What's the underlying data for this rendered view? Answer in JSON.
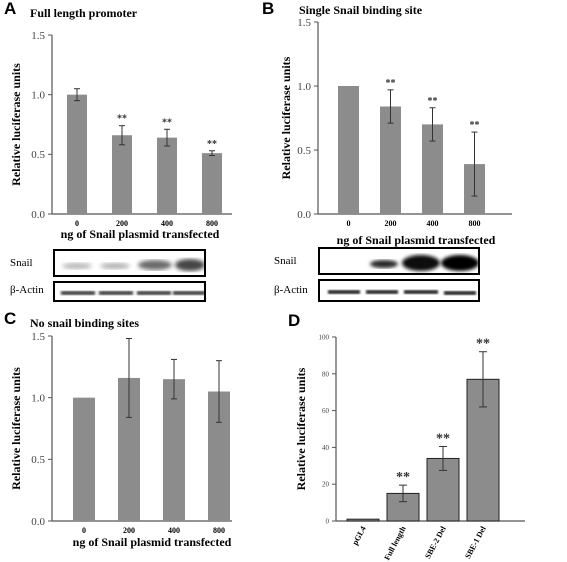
{
  "panels": {
    "A": {
      "letter": "A",
      "title": "Full length promoter"
    },
    "B": {
      "letter": "B",
      "title": "Single Snail binding site"
    },
    "C": {
      "letter": "C",
      "title": "No snail binding sites"
    },
    "D": {
      "letter": "D"
    }
  },
  "blots": {
    "A": {
      "snail_label": "Snail",
      "actin_label": "β-Actin"
    },
    "B": {
      "snail_label": "Snail",
      "actin_label": "β-Actin"
    }
  },
  "colors": {
    "bar": "#8c8c8c",
    "axis": "#555555",
    "text": "#000000"
  },
  "chart_data": [
    {
      "id": "A",
      "type": "bar",
      "categories": [
        "0",
        "200",
        "400",
        "800"
      ],
      "values": [
        1.0,
        0.66,
        0.64,
        0.51
      ],
      "errors": [
        0.05,
        0.08,
        0.07,
        0.02
      ],
      "annotations": [
        "",
        "**",
        "**",
        "**"
      ],
      "xlabel": "ng of Snail plasmid transfected",
      "ylabel": "Relative luciferase units",
      "ylim": [
        0,
        1.5
      ],
      "yticks": [
        "0.0",
        "0.5",
        "1.0",
        "1.5"
      ]
    },
    {
      "id": "B",
      "type": "bar",
      "categories": [
        "0",
        "200",
        "400",
        "800"
      ],
      "values": [
        1.0,
        0.84,
        0.7,
        0.39
      ],
      "errors": [
        0.0,
        0.13,
        0.13,
        0.25
      ],
      "annotations": [
        "",
        "**",
        "**",
        "**"
      ],
      "xlabel": "ng of Snail plasmid transfected",
      "ylabel": "Relative luciferase units",
      "ylim": [
        0,
        1.5
      ],
      "yticks": [
        "0.0",
        "0.5",
        "1.0",
        "1.5"
      ]
    },
    {
      "id": "C",
      "type": "bar",
      "categories": [
        "0",
        "200",
        "400",
        "800"
      ],
      "values": [
        1.0,
        1.16,
        1.15,
        1.05
      ],
      "errors": [
        0.0,
        0.32,
        0.16,
        0.25
      ],
      "annotations": [
        "",
        "",
        "",
        ""
      ],
      "xlabel": "ng of Snail plasmid transfected",
      "ylabel": "Relative luciferase units",
      "ylim": [
        0,
        1.5
      ],
      "yticks": [
        "0.0",
        "0.5",
        "1.0",
        "1.5"
      ]
    },
    {
      "id": "D",
      "type": "bar",
      "categories": [
        "pGL4",
        "Full length",
        "SBE-2 Del",
        "SBE-1 Del"
      ],
      "values": [
        1,
        15,
        34,
        77
      ],
      "errors": [
        0,
        4.5,
        6.5,
        15
      ],
      "annotations": [
        "",
        "**",
        "**",
        "**"
      ],
      "xlabel": "",
      "ylabel": "Relative luciferase units",
      "ylim": [
        0,
        100
      ],
      "yticks": [
        "0",
        "20",
        "40",
        "60",
        "80",
        "100"
      ]
    }
  ]
}
